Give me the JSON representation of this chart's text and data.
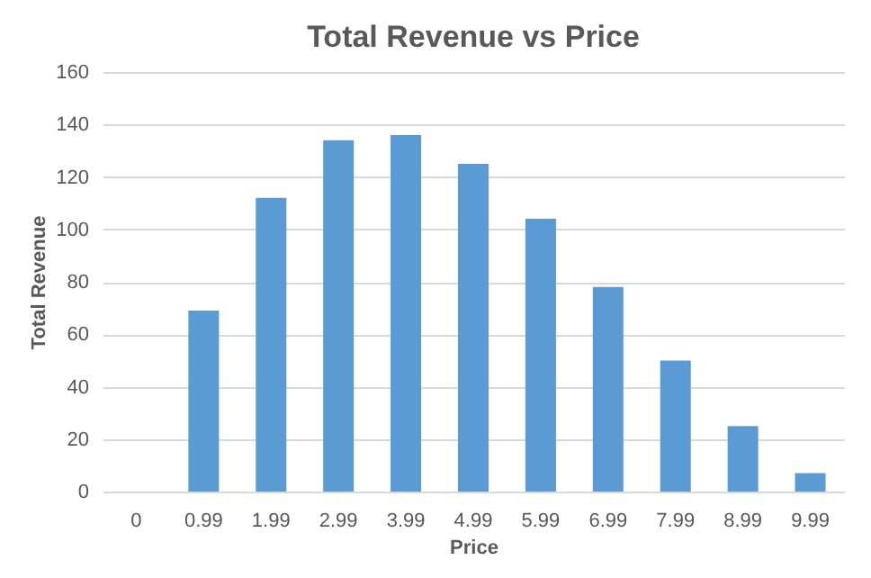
{
  "chart_data": {
    "type": "bar",
    "title": "Total Revenue vs Price",
    "xlabel": "Price",
    "ylabel": "Total Revenue",
    "categories": [
      "0",
      "0.99",
      "1.99",
      "2.99",
      "3.99",
      "4.99",
      "5.99",
      "6.99",
      "7.99",
      "8.99",
      "9.99"
    ],
    "values": [
      0,
      69,
      112,
      134,
      136,
      125,
      104,
      78,
      50,
      25,
      7
    ],
    "color": "#5b9bd5",
    "ylim": [
      0,
      160
    ],
    "yticks": [
      0,
      20,
      40,
      60,
      80,
      100,
      120,
      140,
      160
    ],
    "grid": "y"
  }
}
